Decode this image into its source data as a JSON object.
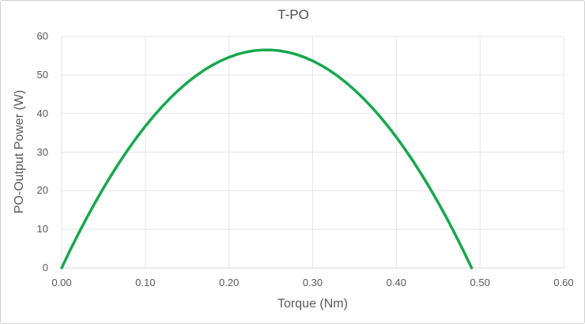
{
  "colors": {
    "line": "#18a74f",
    "gridline": "#e6e6e6",
    "axis_line": "#d9d9d9",
    "text": "#595959",
    "title_text": "#4f4f4f",
    "chart_border": "#cfcfcf",
    "background": "#ffffff"
  },
  "chart_data": {
    "type": "line",
    "title": "T-PO",
    "xlabel": "Torque (Nm)",
    "ylabel": "PO-Output Power (W)",
    "xlim": [
      0,
      0.6
    ],
    "ylim": [
      0,
      60
    ],
    "x_ticks": [
      "0.00",
      "0.10",
      "0.20",
      "0.30",
      "0.40",
      "0.50",
      "0.60"
    ],
    "y_ticks": [
      "0",
      "10",
      "20",
      "30",
      "40",
      "50",
      "60"
    ],
    "grid": true,
    "legend": false,
    "peak": {
      "x": 0.245,
      "y": 56.5
    },
    "series": [
      {
        "name": "T-PO",
        "color": "#18a74f",
        "x": [
          0,
          0.01,
          0.02,
          0.03,
          0.04,
          0.05,
          0.06,
          0.07,
          0.08,
          0.09,
          0.1,
          0.11,
          0.12,
          0.13,
          0.14,
          0.15,
          0.16,
          0.17,
          0.18,
          0.19,
          0.2,
          0.21,
          0.22,
          0.23,
          0.24,
          0.25,
          0.26,
          0.27,
          0.28,
          0.29,
          0.3,
          0.31,
          0.32,
          0.33,
          0.34,
          0.35,
          0.36,
          0.37,
          0.38,
          0.39,
          0.4,
          0.41,
          0.42,
          0.43,
          0.44,
          0.45,
          0.46,
          0.47,
          0.48,
          0.49
        ],
        "y": [
          0,
          4.52,
          8.85,
          12.99,
          16.94,
          20.71,
          24.28,
          27.67,
          30.87,
          33.89,
          36.71,
          39.35,
          41.79,
          44.05,
          46.12,
          48,
          49.7,
          51.21,
          52.52,
          53.65,
          54.59,
          55.35,
          55.91,
          56.29,
          56.48,
          56.48,
          56.29,
          55.91,
          55.35,
          54.59,
          53.65,
          52.52,
          51.21,
          49.7,
          48,
          46.12,
          44.05,
          41.79,
          39.35,
          36.71,
          33.89,
          30.87,
          27.67,
          24.28,
          20.71,
          16.94,
          12.99,
          8.85,
          4.52,
          0
        ]
      }
    ]
  }
}
